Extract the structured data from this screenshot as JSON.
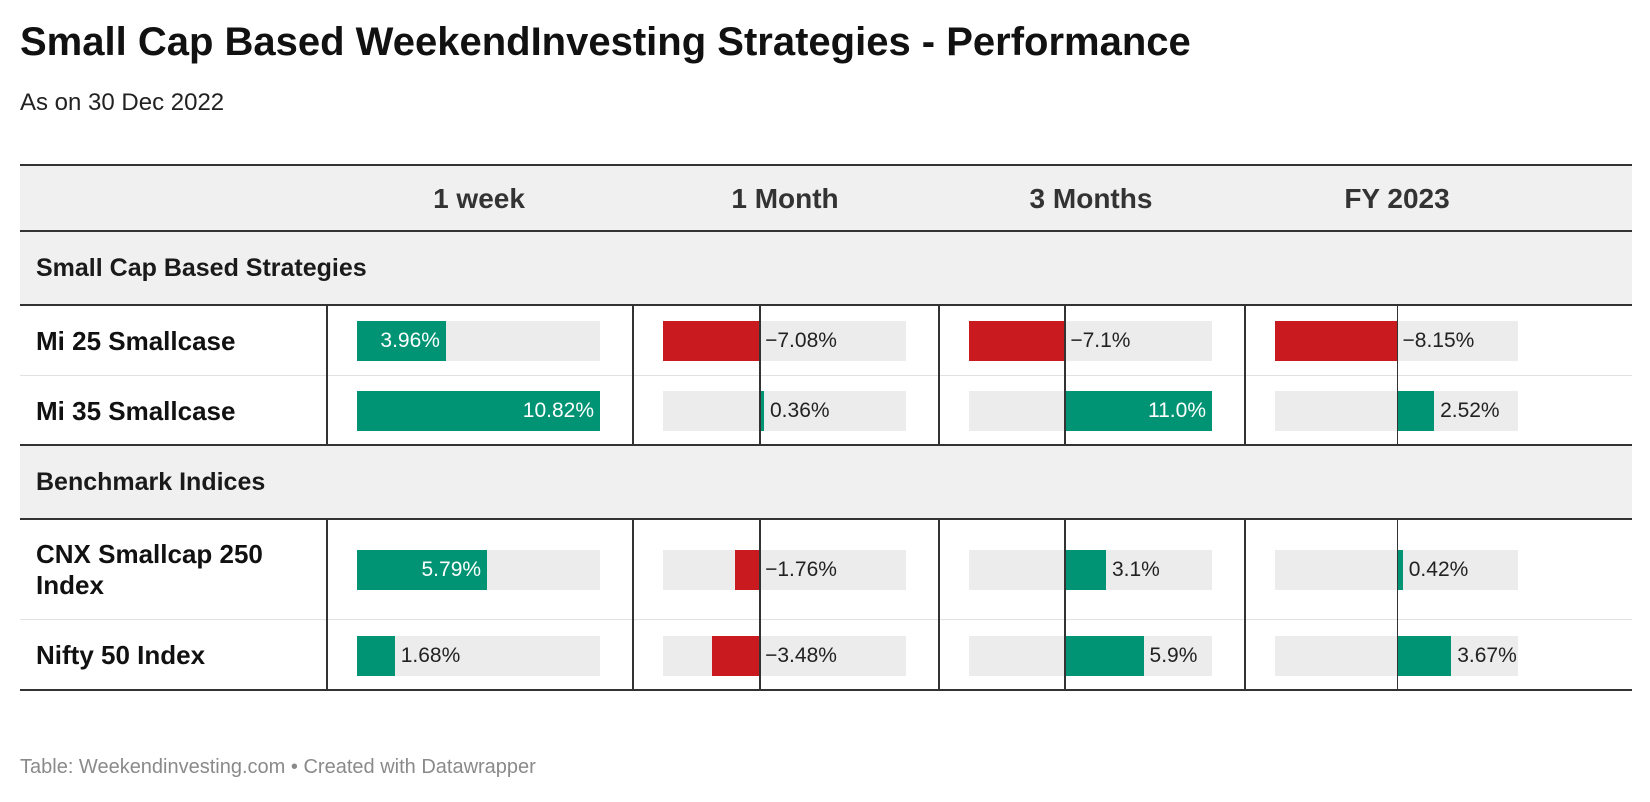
{
  "title": "Small Cap Based WeekendInvesting Strategies - Performance",
  "subtitle": "As on 30 Dec 2022",
  "footer": {
    "source": "Table: Weekendinvesting.com",
    "separator": "•",
    "credit": "Created with Datawrapper"
  },
  "colors": {
    "positive": "#009474",
    "negative": "#c91a1f",
    "track": "#ececec",
    "header_bg": "#f0f0f0"
  },
  "chart_data": {
    "type": "table",
    "columns": [
      "1 week",
      "1 Month",
      "3 Months",
      "FY 2023"
    ],
    "column_ranges": [
      [
        0,
        10.82
      ],
      [
        -7.08,
        10.82
      ],
      [
        -7.1,
        11.0
      ],
      [
        -8.15,
        8.15
      ]
    ],
    "groups": [
      {
        "name": "Small Cap Based Strategies",
        "rows": [
          {
            "label": "Mi 25 Smallcase",
            "values": [
              3.96,
              -7.08,
              -7.1,
              -8.15
            ],
            "labels": [
              "3.96%",
              "−7.08%",
              "−7.1%",
              "−8.15%"
            ]
          },
          {
            "label": "Mi 35 Smallcase",
            "values": [
              10.82,
              0.36,
              11.0,
              2.52
            ],
            "labels": [
              "10.82%",
              "0.36%",
              "11.0%",
              "2.52%"
            ]
          }
        ]
      },
      {
        "name": "Benchmark Indices",
        "rows": [
          {
            "label": "CNX Smallcap 250 Index",
            "values": [
              5.79,
              -1.76,
              3.1,
              0.42
            ],
            "labels": [
              "5.79%",
              "−1.76%",
              "3.1%",
              "0.42%"
            ]
          },
          {
            "label": "Nifty 50 Index",
            "values": [
              1.68,
              -3.48,
              5.9,
              3.67
            ],
            "labels": [
              "1.68%",
              "−3.48%",
              "5.9%",
              "3.67%"
            ]
          }
        ]
      }
    ]
  }
}
